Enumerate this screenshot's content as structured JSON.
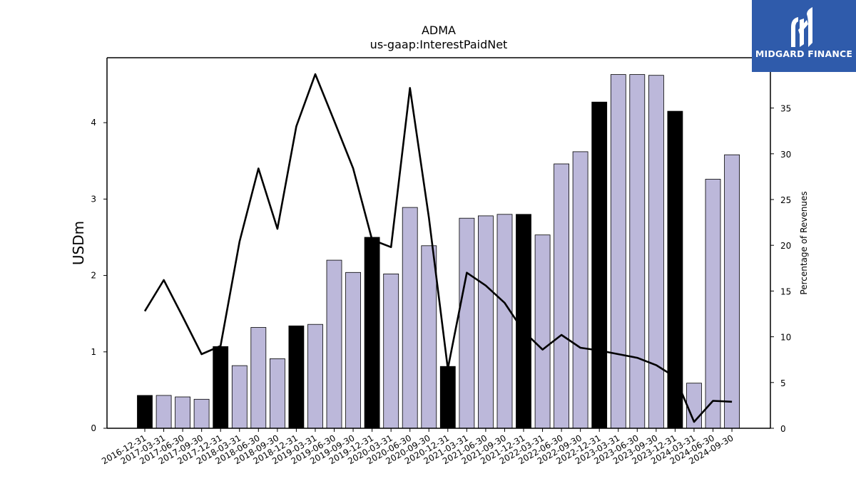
{
  "chart_data": {
    "type": "bar",
    "title": "ADMA",
    "subtitle": "us-gaap:InterestPaidNet",
    "ylabel": "USDm",
    "y2label": "Percentage of Revenues",
    "ylim": [
      0,
      4.85
    ],
    "y2lim": [
      0,
      40.5
    ],
    "yticks": [
      0,
      1,
      2,
      3,
      4
    ],
    "y2ticks": [
      0,
      5,
      10,
      15,
      20,
      25,
      30,
      35
    ],
    "categories": [
      "2016-12-31",
      "2017-03-31",
      "2017-06-30",
      "2017-09-30",
      "2017-12-31",
      "2018-03-31",
      "2018-06-30",
      "2018-09-30",
      "2018-12-31",
      "2019-03-31",
      "2019-06-30",
      "2019-09-30",
      "2019-12-31",
      "2020-03-31",
      "2020-06-30",
      "2020-09-30",
      "2020-12-31",
      "2021-03-31",
      "2021-06-30",
      "2021-09-30",
      "2021-12-31",
      "2022-03-31",
      "2022-06-30",
      "2022-09-30",
      "2022-12-31",
      "2023-03-31",
      "2023-06-30",
      "2023-09-30",
      "2023-12-31",
      "2024-03-31",
      "2024-06-30",
      "2024-09-30"
    ],
    "series": [
      {
        "type": "bar",
        "values": [
          0.43,
          0.43,
          0.41,
          0.38,
          1.07,
          0.82,
          1.32,
          0.91,
          1.34,
          1.36,
          2.2,
          2.04,
          2.5,
          2.02,
          2.89,
          2.39,
          0.81,
          2.75,
          2.78,
          2.8,
          2.8,
          2.53,
          3.46,
          3.62,
          4.27,
          4.63,
          4.63,
          4.62,
          4.15,
          0.59,
          3.26,
          3.58
        ],
        "highlight": [
          true,
          false,
          false,
          false,
          true,
          false,
          false,
          false,
          true,
          false,
          false,
          false,
          true,
          false,
          false,
          false,
          true,
          false,
          false,
          false,
          true,
          false,
          false,
          false,
          true,
          false,
          false,
          false,
          true,
          false,
          false,
          false
        ]
      },
      {
        "type": "line",
        "axis": "right",
        "values": [
          12.8,
          16.2,
          12.2,
          8.1,
          9.0,
          20.4,
          28.4,
          21.8,
          33.0,
          38.7,
          33.6,
          28.4,
          20.6,
          19.8,
          37.2,
          23.0,
          6.5,
          17.0,
          15.6,
          13.7,
          10.6,
          8.6,
          10.2,
          8.8,
          8.5,
          8.1,
          7.7,
          6.9,
          5.6,
          0.7,
          3.0,
          2.9
        ]
      }
    ],
    "colors": {
      "bar": "#bcb8da",
      "bar_highlight": "#000000",
      "line": "#000000",
      "edge": "#000000"
    },
    "grid": false
  },
  "logo": {
    "text": "MIDGARD FINANCE",
    "icon": "midgard-logo-icon",
    "background": "#2f5bab"
  }
}
